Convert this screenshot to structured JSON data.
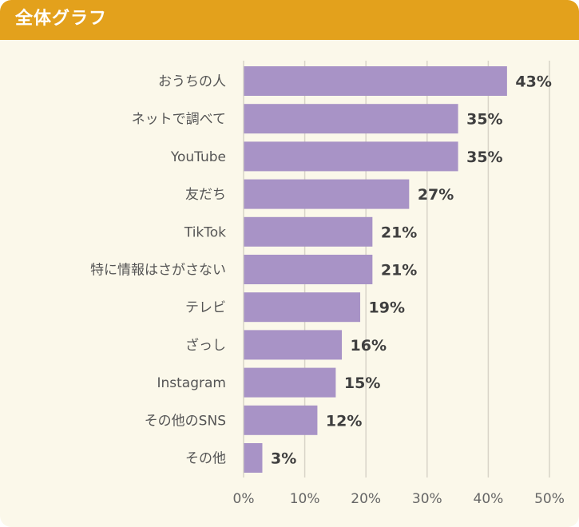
{
  "header": {
    "title": "全体グラフ"
  },
  "colors": {
    "header": "#e3a11c",
    "bar": "#a893c6",
    "grid": "#d8d4c8",
    "background": "#fbf8ea"
  },
  "chart_data": {
    "type": "bar",
    "orientation": "horizontal",
    "title": "全体グラフ",
    "categories": [
      "おうちの人",
      "ネットで調べて",
      "YouTube",
      "友だち",
      "TikTok",
      "特に情報はさがさない",
      "テレビ",
      "ざっし",
      "Instagram",
      "その他のSNS",
      "その他"
    ],
    "values": [
      43,
      35,
      35,
      27,
      21,
      21,
      19,
      16,
      15,
      12,
      3
    ],
    "data_labels": [
      "43%",
      "35%",
      "35%",
      "27%",
      "21%",
      "21%",
      "19%",
      "16%",
      "15%",
      "12%",
      "3%"
    ],
    "xlim": [
      0,
      50
    ],
    "ticks": [
      0,
      10,
      20,
      30,
      40,
      50
    ],
    "tick_labels": [
      "0%",
      "10%",
      "20%",
      "30%",
      "40%",
      "50%"
    ],
    "grid": true,
    "legend": "none"
  }
}
